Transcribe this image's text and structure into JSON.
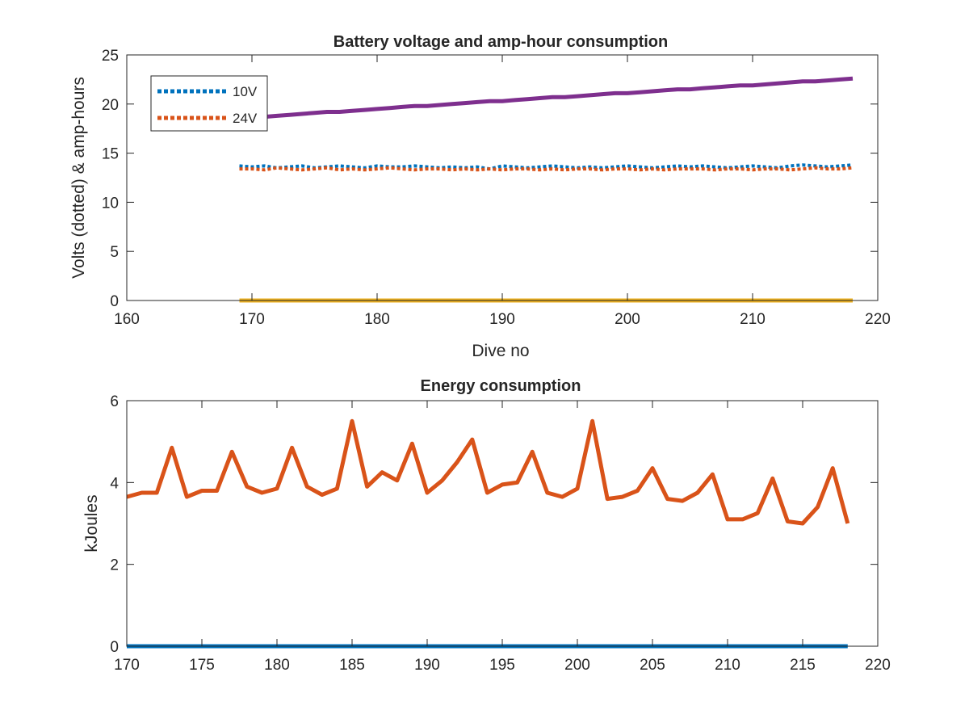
{
  "colors": {
    "blue": "#0072BD",
    "orange": "#D95319",
    "yellow": "#EDB120",
    "purple": "#7E2F8E",
    "axis": "#262626"
  },
  "chart_data": [
    {
      "type": "line",
      "title": "Battery voltage and amp-hour consumption",
      "xlabel": "Dive no",
      "ylabel": "Volts (dotted) & amp-hours",
      "xlim": [
        160,
        220
      ],
      "ylim": [
        0,
        25
      ],
      "xticks": [
        160,
        170,
        180,
        190,
        200,
        210,
        220
      ],
      "yticks": [
        0,
        5,
        10,
        15,
        20,
        25
      ],
      "legend": {
        "placement": "top-left",
        "entries": [
          "10V",
          "24V"
        ]
      },
      "x": [
        169,
        170,
        171,
        172,
        173,
        174,
        175,
        176,
        177,
        178,
        179,
        180,
        181,
        182,
        183,
        184,
        185,
        186,
        187,
        188,
        189,
        190,
        191,
        192,
        193,
        194,
        195,
        196,
        197,
        198,
        199,
        200,
        201,
        202,
        203,
        204,
        205,
        206,
        207,
        208,
        209,
        210,
        211,
        212,
        213,
        214,
        215,
        216,
        217,
        218
      ],
      "series": [
        {
          "name": "10V",
          "style": "dotted",
          "color": "blue",
          "values": [
            13.7,
            13.6,
            13.7,
            13.5,
            13.6,
            13.7,
            13.5,
            13.6,
            13.7,
            13.6,
            13.5,
            13.7,
            13.6,
            13.6,
            13.7,
            13.6,
            13.5,
            13.6,
            13.5,
            13.6,
            13.4,
            13.7,
            13.6,
            13.5,
            13.6,
            13.7,
            13.6,
            13.5,
            13.6,
            13.5,
            13.6,
            13.7,
            13.6,
            13.5,
            13.6,
            13.7,
            13.6,
            13.7,
            13.6,
            13.5,
            13.6,
            13.7,
            13.6,
            13.5,
            13.7,
            13.8,
            13.7,
            13.6,
            13.7,
            13.8
          ]
        },
        {
          "name": "24V",
          "style": "dotted",
          "color": "orange",
          "values": [
            13.4,
            13.4,
            13.3,
            13.5,
            13.4,
            13.3,
            13.4,
            13.5,
            13.3,
            13.4,
            13.3,
            13.4,
            13.5,
            13.4,
            13.3,
            13.4,
            13.4,
            13.3,
            13.4,
            13.3,
            13.4,
            13.3,
            13.4,
            13.4,
            13.3,
            13.4,
            13.3,
            13.4,
            13.4,
            13.3,
            13.4,
            13.4,
            13.3,
            13.4,
            13.3,
            13.4,
            13.4,
            13.4,
            13.3,
            13.4,
            13.4,
            13.3,
            13.4,
            13.4,
            13.3,
            13.4,
            13.5,
            13.4,
            13.4,
            13.5
          ]
        },
        {
          "style": "solid",
          "color": "yellow",
          "values": [
            0,
            0,
            0,
            0,
            0,
            0,
            0,
            0,
            0,
            0,
            0,
            0,
            0,
            0,
            0,
            0,
            0,
            0,
            0,
            0,
            0,
            0,
            0,
            0,
            0,
            0,
            0,
            0,
            0,
            0,
            0,
            0,
            0,
            0,
            0,
            0,
            0,
            0,
            0,
            0,
            0,
            0,
            0,
            0,
            0,
            0,
            0,
            0,
            0,
            0
          ]
        },
        {
          "style": "solid",
          "color": "purple",
          "values": [
            18.5,
            18.6,
            18.7,
            18.8,
            18.9,
            19.0,
            19.1,
            19.2,
            19.2,
            19.3,
            19.4,
            19.5,
            19.6,
            19.7,
            19.8,
            19.8,
            19.9,
            20.0,
            20.1,
            20.2,
            20.3,
            20.3,
            20.4,
            20.5,
            20.6,
            20.7,
            20.7,
            20.8,
            20.9,
            21.0,
            21.1,
            21.1,
            21.2,
            21.3,
            21.4,
            21.5,
            21.5,
            21.6,
            21.7,
            21.8,
            21.9,
            21.9,
            22.0,
            22.1,
            22.2,
            22.3,
            22.3,
            22.4,
            22.5,
            22.6
          ]
        }
      ]
    },
    {
      "type": "line",
      "title": "Energy consumption",
      "xlabel": "",
      "ylabel": "kJoules",
      "xlim": [
        170,
        220
      ],
      "ylim": [
        0,
        6
      ],
      "xticks": [
        170,
        175,
        180,
        185,
        190,
        195,
        200,
        205,
        210,
        215,
        220
      ],
      "yticks": [
        0,
        2,
        4,
        6
      ],
      "x": [
        170,
        171,
        172,
        173,
        174,
        175,
        176,
        177,
        178,
        179,
        180,
        181,
        182,
        183,
        184,
        185,
        186,
        187,
        188,
        189,
        190,
        191,
        192,
        193,
        194,
        195,
        196,
        197,
        198,
        199,
        200,
        201,
        202,
        203,
        204,
        205,
        206,
        207,
        208,
        209,
        210,
        211,
        212,
        213,
        214,
        215,
        216,
        217,
        218
      ],
      "series": [
        {
          "style": "solid",
          "color": "blue",
          "values": [
            0,
            0,
            0,
            0,
            0,
            0,
            0,
            0,
            0,
            0,
            0,
            0,
            0,
            0,
            0,
            0,
            0,
            0,
            0,
            0,
            0,
            0,
            0,
            0,
            0,
            0,
            0,
            0,
            0,
            0,
            0,
            0,
            0,
            0,
            0,
            0,
            0,
            0,
            0,
            0,
            0,
            0,
            0,
            0,
            0,
            0,
            0,
            0,
            0
          ]
        },
        {
          "style": "solid",
          "color": "orange",
          "values": [
            3.65,
            3.75,
            3.75,
            4.85,
            3.65,
            3.8,
            3.8,
            4.75,
            3.9,
            3.75,
            3.85,
            4.85,
            3.9,
            3.7,
            3.85,
            5.5,
            3.9,
            4.25,
            4.05,
            4.95,
            3.75,
            4.05,
            4.5,
            5.05,
            3.75,
            3.95,
            4.0,
            4.75,
            3.75,
            3.65,
            3.85,
            5.5,
            3.6,
            3.65,
            3.8,
            4.35,
            3.6,
            3.55,
            3.75,
            4.2,
            3.1,
            3.1,
            3.25,
            4.1,
            3.05,
            3.0,
            3.4,
            4.35,
            3.0
          ]
        }
      ]
    }
  ]
}
